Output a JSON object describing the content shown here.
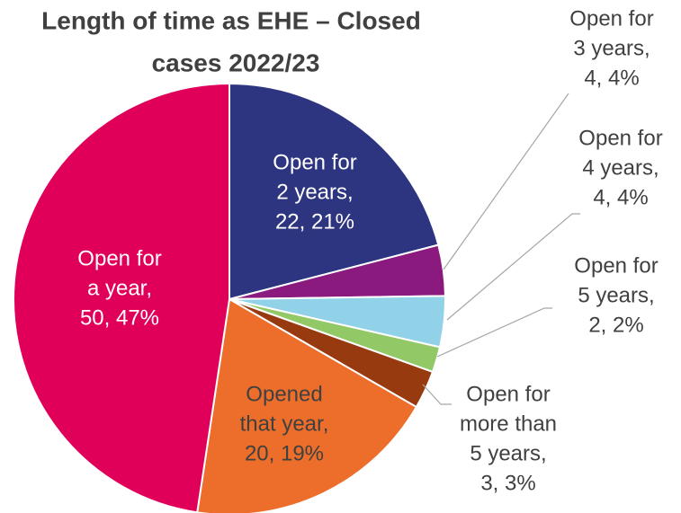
{
  "chart_data": {
    "type": "pie",
    "title_lines": [
      "Length of time as EHE – Closed",
      "cases 2022/23"
    ],
    "values": [
      22,
      4,
      4,
      2,
      3,
      20,
      50
    ],
    "value_labels": [
      [
        "Open for",
        "2 years,",
        "22, 21%"
      ],
      [
        "Open for",
        "3 years,",
        "4, 4%"
      ],
      [
        "Open for",
        "4 years,",
        "4, 4%"
      ],
      [
        "Open for",
        "5 years,",
        "2, 2%"
      ],
      [
        "Open for",
        "more than",
        "5 years,",
        "3, 3%"
      ],
      [
        "Opened",
        "that year,",
        "20, 19%"
      ],
      [
        "Open for",
        "a year,",
        "50, 47%"
      ]
    ],
    "colors": [
      "#2e3580",
      "#8b1a7f",
      "#92d2e8",
      "#92c865",
      "#983a10",
      "#ec6e2a",
      "#e0005a"
    ]
  }
}
